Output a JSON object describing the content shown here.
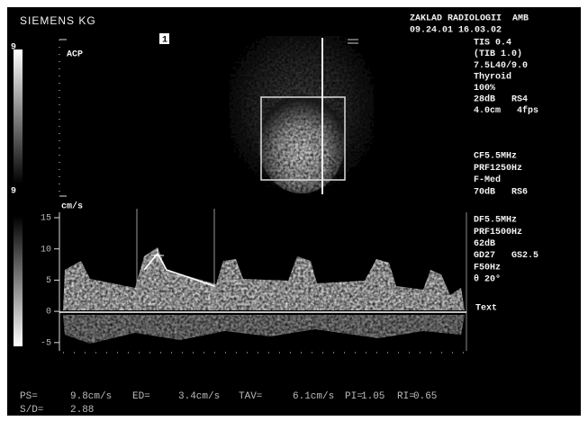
{
  "header": {
    "brand": "SIEMENS KG",
    "institution": "ZAKLAD RADIOLOGII  AMB",
    "datetime": "09.24.01 16.03.02"
  },
  "image_settings": [
    "TIS 0.4",
    "(TIB 1.0)",
    "7.5L40/9.0",
    "Thyroid",
    "100%",
    "28dB   RS4",
    "4.0cm   4fps"
  ],
  "color_flow": [
    "CF5.5MHz",
    "PRF1250Hz",
    "F-Med",
    "70dB   RS6"
  ],
  "doppler": [
    "DF5.5MHz",
    "PRF1500Hz",
    "62dB",
    "GD27   GS2.5",
    "F50Hz",
    "θ 20°"
  ],
  "text_label": "Text",
  "scale": {
    "top": "9",
    "bottom": "9"
  },
  "marker": "1",
  "region": "ACP",
  "spectrum": {
    "unit": "cm/s",
    "ticks": [
      "15",
      "10",
      "5",
      "0",
      "-5"
    ]
  },
  "measurements": [
    {
      "label": "PS=",
      "value": "9.8cm/s"
    },
    {
      "label": "ED=",
      "value": "3.4cm/s"
    },
    {
      "label": "TAV=",
      "value": "6.1cm/s"
    },
    {
      "label": "PI=",
      "value": "1.05"
    },
    {
      "label": "RI=",
      "value": "0.65"
    }
  ],
  "ratio": {
    "label": "S/D=",
    "value": "2.88"
  }
}
